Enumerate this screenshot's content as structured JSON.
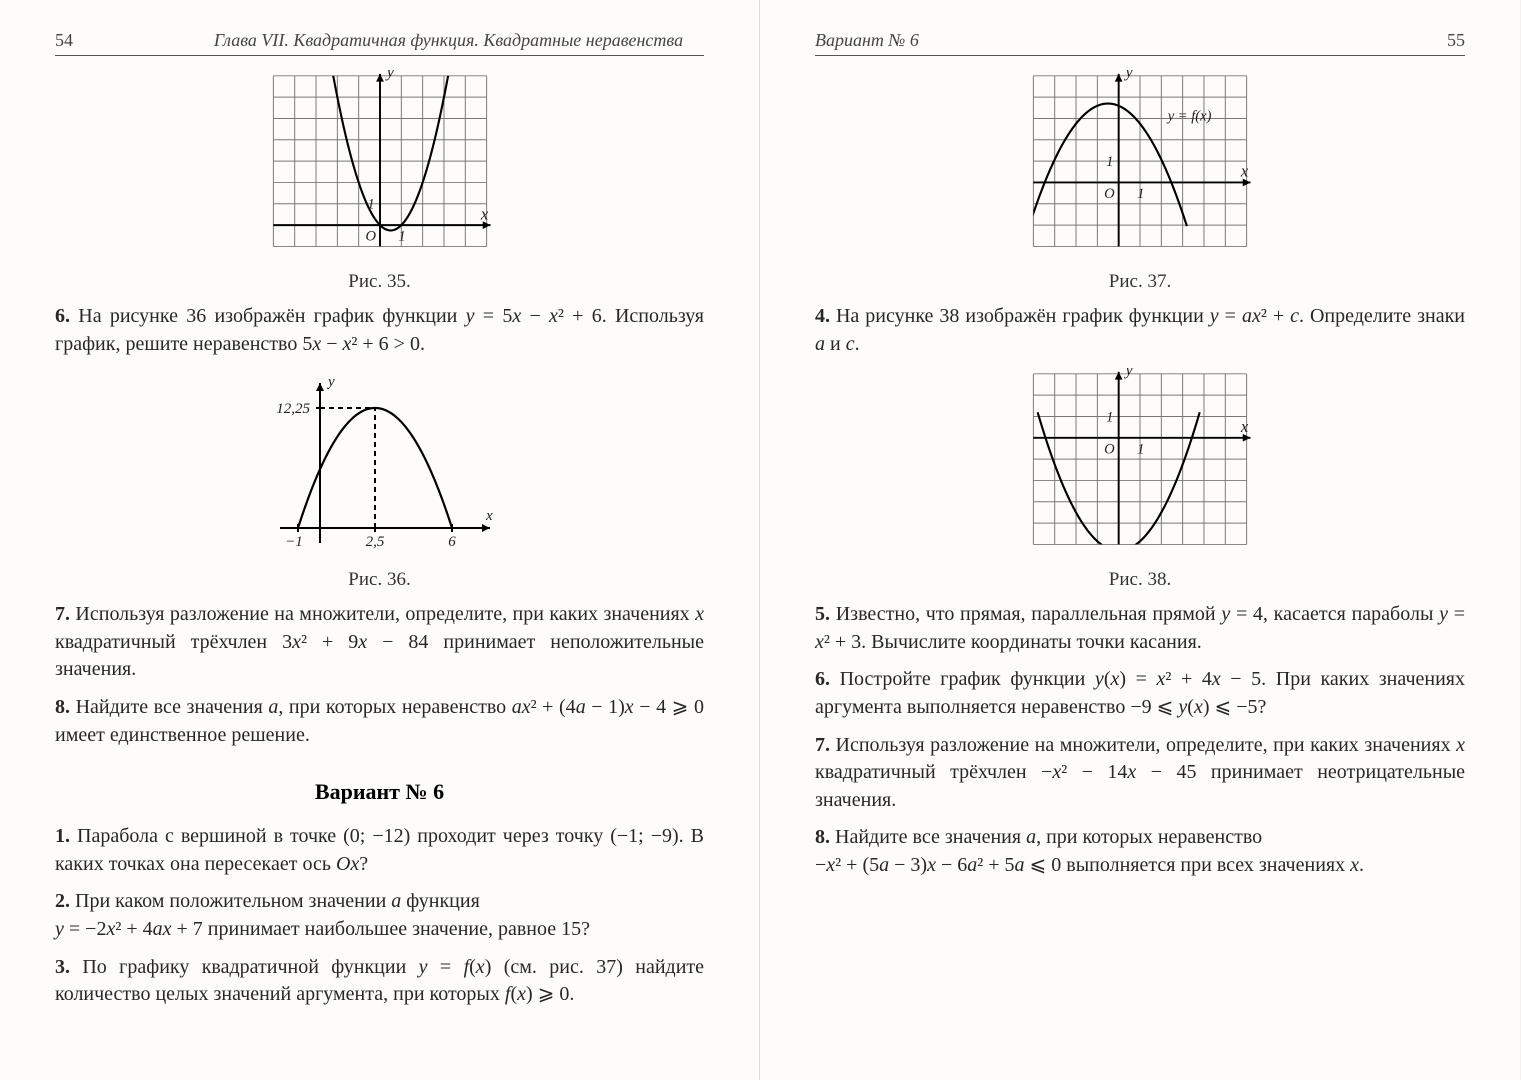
{
  "left": {
    "page_num": "54",
    "header": "Глава VII. Квадратичная функция. Квадратные неравенства",
    "fig35": {
      "caption": "Рис. 35.",
      "cols": 10,
      "rows": 8,
      "cell": 22,
      "origin_col": 5,
      "origin_row": 7,
      "y_label": "y",
      "x_label": "x",
      "origin_label": "O",
      "tick_x": "1",
      "tick_y": "1",
      "parabola": {
        "vertex_x": 0.5,
        "vertex_y": -0.25,
        "a": 1,
        "xmin": -2.3,
        "xmax": 3.3
      }
    },
    "p6": "6. На рисунке 36 изображён график функции y = 5x − x² + 6. Используя график, решите неравенство 5x − x² + 6 > 0.",
    "fig36": {
      "caption": "Рис. 36.",
      "y_label": "y",
      "x_label": "x",
      "y_max_label": "12,25",
      "x_ticks": [
        "−1",
        "2,5",
        "6"
      ]
    },
    "p7": "7. Используя разложение на множители, определите, при каких значениях x квадратичный трёхчлен 3x² + 9x − 84 принимает неположительные значения.",
    "p8": "8. Найдите все значения a, при которых неравенство ax² + (4a − 1)x − 4 ⩾ 0 имеет единственное решение.",
    "variant": "Вариант № 6",
    "v1": "1. Парабола с вершиной в точке (0; −12) проходит через точку (−1; −9). В каких точках она пересекает ось Ox?",
    "v2": "2. При каком положительном значении a функция y = −2x² + 4ax + 7 принимает наибольшее значение, равное 15?",
    "v3": "3. По графику квадратичной функции y = f(x) (см. рис. 37) найдите количество целых значений аргумента, при которых f(x) ⩾ 0."
  },
  "right": {
    "page_num": "55",
    "header": "Вариант № 6",
    "fig37": {
      "caption": "Рис. 37.",
      "cols": 10,
      "rows": 8,
      "cell": 22,
      "origin_col": 4,
      "origin_row": 5,
      "y_label": "y",
      "x_label": "x",
      "origin_label": "O",
      "tick_x": "1",
      "tick_y": "1",
      "curve_label": "y = f(x)",
      "parabola": {
        "vertex_x": -0.5,
        "vertex_y": 3.7,
        "a": -0.42,
        "xmin": -4.2,
        "xmax": 3.2
      }
    },
    "p4": "4. На рисунке 38 изображён график функции y = ax² + c. Определите знаки a и c.",
    "fig38": {
      "caption": "Рис. 38.",
      "cols": 10,
      "rows": 8,
      "cell": 22,
      "origin_col": 4,
      "origin_row": 3,
      "y_label": "y",
      "x_label": "x",
      "origin_label": "O",
      "tick_x": "1",
      "tick_y": "1",
      "parabola": {
        "vertex_x": 0,
        "vertex_y": -5.3,
        "a": 0.45,
        "xmin": -3.8,
        "xmax": 3.8
      }
    },
    "p5": "5. Известно, что прямая, параллельная прямой y = 4, касается параболы y = x² + 3. Вычислите координаты точки касания.",
    "p6": "6. Постройте график функции y(x) = x² + 4x − 5. При каких значениях аргумента выполняется неравенство −9 ⩽ y(x) ⩽ −5?",
    "p7": "7. Используя разложение на множители, определите, при каких значениях x квадратичный трёхчлен −x² − 14x − 45 принимает неотрицательные значения.",
    "p8": "8. Найдите все значения a, при которых неравенство −x² + (5a − 3)x − 6a² + 5a ⩽ 0 выполняется при всех значениях x."
  },
  "colors": {
    "bg": "#fdfcfb",
    "grid": "#777",
    "axis": "#000",
    "text": "#272727"
  }
}
